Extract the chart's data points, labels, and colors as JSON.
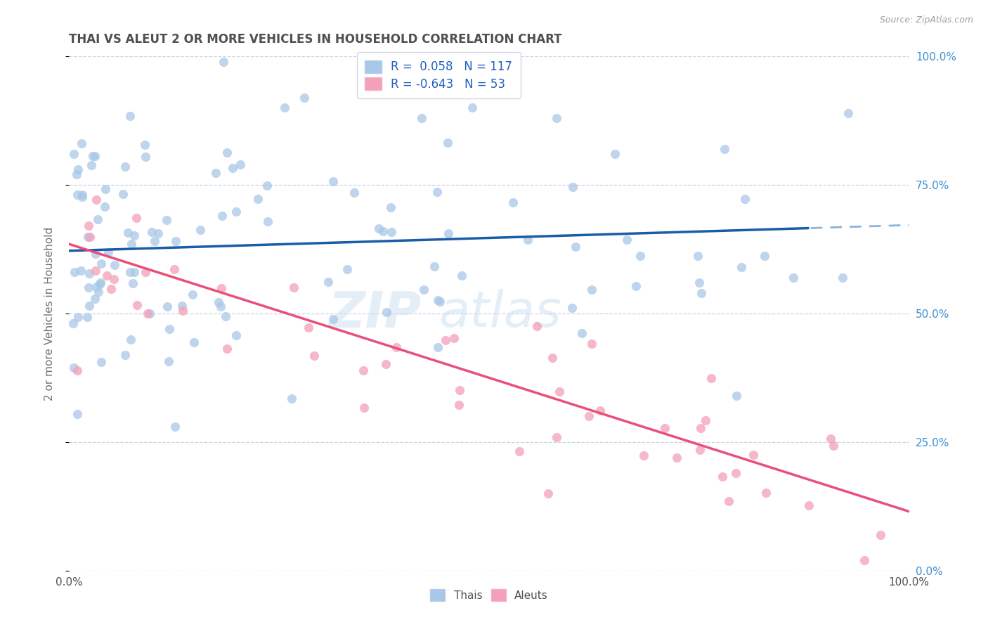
{
  "title": "THAI VS ALEUT 2 OR MORE VEHICLES IN HOUSEHOLD CORRELATION CHART",
  "source": "Source: ZipAtlas.com",
  "ylabel": "2 or more Vehicles in Household",
  "xlim": [
    0,
    1
  ],
  "ylim": [
    0,
    1
  ],
  "ytick_labels": [
    "0.0%",
    "25.0%",
    "50.0%",
    "75.0%",
    "100.0%"
  ],
  "ytick_positions": [
    0.0,
    0.25,
    0.5,
    0.75,
    1.0
  ],
  "xtick_labels": [
    "0.0%",
    "100.0%"
  ],
  "xtick_positions": [
    0.0,
    1.0
  ],
  "thai_R": 0.058,
  "thai_N": 117,
  "aleut_R": -0.643,
  "aleut_N": 53,
  "thai_color": "#a8c8e8",
  "aleut_color": "#f4a0b8",
  "thai_line_color": "#1a5ca8",
  "thai_dash_color": "#8ab4d8",
  "aleut_line_color": "#e8507a",
  "background_color": "#ffffff",
  "grid_color": "#c8d4e8",
  "title_color": "#505050",
  "source_color": "#a0a0a0",
  "legend_text_color": "#2060c0",
  "right_axis_color": "#4090d0",
  "watermark_color": "#c8dff0",
  "figsize": [
    14.06,
    8.92
  ],
  "dpi": 100,
  "thai_line_y0": 0.622,
  "thai_line_y1": 0.672,
  "aleut_line_y0": 0.635,
  "aleut_line_y1": 0.115
}
